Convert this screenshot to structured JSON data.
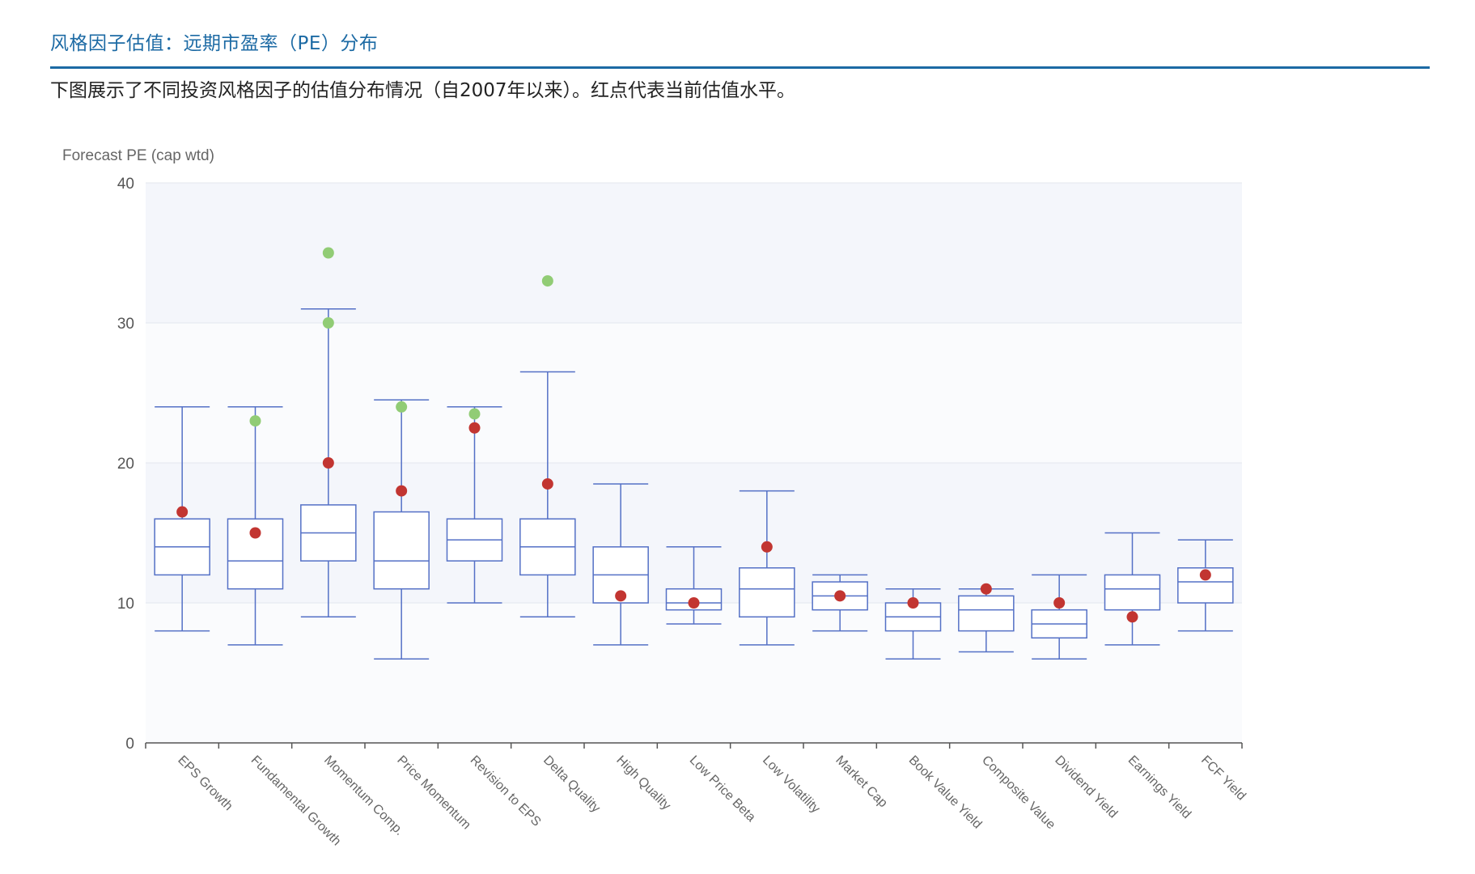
{
  "header": {
    "title": "风格因子估值：远期市盈率（PE）分布",
    "description": "下图展示了不同投资风格因子的估值分布情况（自2007年以来）。红点代表当前估值水平。"
  },
  "colors": {
    "accent": "#1c6aa4",
    "box": "#5470c6",
    "current": "#c23531",
    "outlier": "#91cc75",
    "band": "#f4f6fb"
  },
  "chart_data": {
    "type": "boxplot",
    "ylabel": "Forecast PE (cap wtd)",
    "ylim": [
      0,
      40
    ],
    "yticks": [
      0,
      10,
      20,
      30,
      40
    ],
    "grid": "horizontal",
    "categories": [
      "EPS Growth",
      "Fundamental Growth",
      "Momentum Comp.",
      "Price Momentum",
      "Revision to EPS",
      "Delta Quality",
      "High Quality",
      "Low Price Beta",
      "Low Volatility",
      "Market Cap",
      "Book Value Yield",
      "Composite Value",
      "Dividend Yield",
      "Earnings Yield",
      "FCF Yield"
    ],
    "boxes": [
      {
        "min": 8,
        "q1": 12,
        "median": 14,
        "q3": 16,
        "max": 24
      },
      {
        "min": 7,
        "q1": 11,
        "median": 13,
        "q3": 16,
        "max": 24
      },
      {
        "min": 9,
        "q1": 13,
        "median": 15,
        "q3": 17,
        "max": 31
      },
      {
        "min": 6,
        "q1": 11,
        "median": 13,
        "q3": 16.5,
        "max": 24.5
      },
      {
        "min": 10,
        "q1": 13,
        "median": 14.5,
        "q3": 16,
        "max": 24
      },
      {
        "min": 9,
        "q1": 12,
        "median": 14,
        "q3": 16,
        "max": 26.5
      },
      {
        "min": 7,
        "q1": 10,
        "median": 12,
        "q3": 14,
        "max": 18.5
      },
      {
        "min": 8.5,
        "q1": 9.5,
        "median": 10,
        "q3": 11,
        "max": 14
      },
      {
        "min": 7,
        "q1": 9,
        "median": 11,
        "q3": 12.5,
        "max": 18
      },
      {
        "min": 8,
        "q1": 9.5,
        "median": 10.5,
        "q3": 11.5,
        "max": 12
      },
      {
        "min": 6,
        "q1": 8,
        "median": 9,
        "q3": 10,
        "max": 11
      },
      {
        "min": 6.5,
        "q1": 8,
        "median": 9.5,
        "q3": 10.5,
        "max": 11
      },
      {
        "min": 6,
        "q1": 7.5,
        "median": 8.5,
        "q3": 9.5,
        "max": 12
      },
      {
        "min": 7,
        "q1": 9.5,
        "median": 11,
        "q3": 12,
        "max": 15
      },
      {
        "min": 8,
        "q1": 10,
        "median": 11.5,
        "q3": 12.5,
        "max": 14.5
      }
    ],
    "current": [
      16.5,
      15,
      20,
      18,
      22.5,
      18.5,
      10.5,
      10,
      14,
      10.5,
      10,
      11,
      10,
      9,
      12
    ],
    "outliers": [
      {
        "category": "Fundamental Growth",
        "value": 23
      },
      {
        "category": "Momentum Comp.",
        "value": 35
      },
      {
        "category": "Momentum Comp.",
        "value": 30
      },
      {
        "category": "Price Momentum",
        "value": 24
      },
      {
        "category": "Revision to EPS",
        "value": 23.5
      },
      {
        "category": "Delta Quality",
        "value": 33
      }
    ]
  }
}
